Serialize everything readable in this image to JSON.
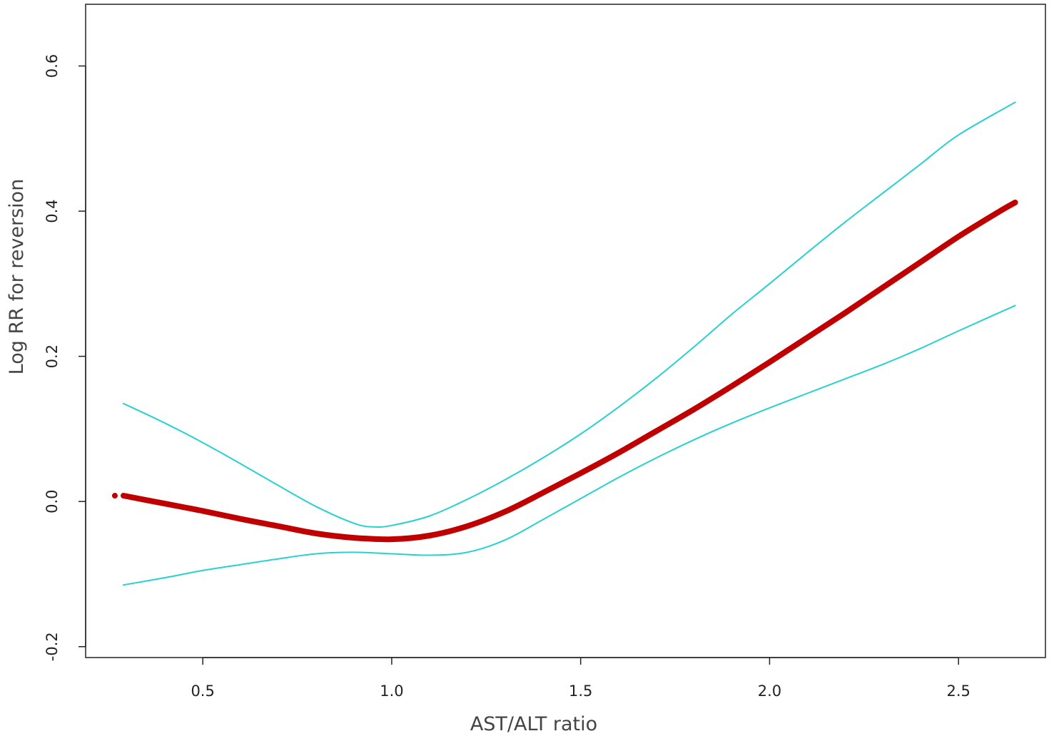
{
  "chart_data": {
    "type": "line",
    "xlabel": "AST/ALT ratio",
    "ylabel": "Log RR for reversion",
    "xlim": [
      0.19,
      2.73
    ],
    "ylim": [
      -0.215,
      0.685
    ],
    "xticks": [
      {
        "value": 0.5,
        "label": "0.5"
      },
      {
        "value": 1.0,
        "label": "1.0"
      },
      {
        "value": 1.5,
        "label": "1.5"
      },
      {
        "value": 2.0,
        "label": "2.0"
      },
      {
        "value": 2.5,
        "label": "2.5"
      }
    ],
    "yticks": [
      {
        "value": -0.2,
        "label": "-0.2"
      },
      {
        "value": 0.0,
        "label": "0.0"
      },
      {
        "value": 0.2,
        "label": "0.2"
      },
      {
        "value": 0.4,
        "label": "0.4"
      },
      {
        "value": 0.6,
        "label": "0.6"
      }
    ],
    "grid": false,
    "series": [
      {
        "color": "#c00000",
        "role": "estimate",
        "x": [
          0.29,
          0.4,
          0.5,
          0.6,
          0.7,
          0.8,
          0.9,
          1.0,
          1.1,
          1.2,
          1.3,
          1.4,
          1.5,
          1.6,
          1.7,
          1.8,
          1.9,
          2.0,
          2.1,
          2.2,
          2.3,
          2.4,
          2.5,
          2.6,
          2.65
        ],
        "y": [
          0.008,
          -0.003,
          -0.013,
          -0.024,
          -0.034,
          -0.044,
          -0.05,
          -0.052,
          -0.047,
          -0.034,
          -0.014,
          0.012,
          0.039,
          0.067,
          0.097,
          0.127,
          0.159,
          0.192,
          0.226,
          0.26,
          0.295,
          0.33,
          0.365,
          0.397,
          0.412
        ]
      },
      {
        "color": "#29d0d0",
        "role": "upper bound",
        "x": [
          0.29,
          0.4,
          0.5,
          0.6,
          0.7,
          0.8,
          0.9,
          0.95,
          1.0,
          1.1,
          1.2,
          1.3,
          1.4,
          1.5,
          1.6,
          1.7,
          1.8,
          1.9,
          2.0,
          2.1,
          2.2,
          2.3,
          2.4,
          2.5,
          2.65
        ],
        "y": [
          0.135,
          0.108,
          0.081,
          0.052,
          0.022,
          -0.007,
          -0.03,
          -0.035,
          -0.033,
          -0.02,
          0.003,
          0.03,
          0.06,
          0.093,
          0.13,
          0.17,
          0.213,
          0.258,
          0.3,
          0.343,
          0.385,
          0.425,
          0.465,
          0.505,
          0.55
        ]
      },
      {
        "color": "#29d0d0",
        "role": "lower bound",
        "x": [
          0.29,
          0.4,
          0.5,
          0.6,
          0.7,
          0.8,
          0.9,
          1.0,
          1.1,
          1.2,
          1.3,
          1.4,
          1.5,
          1.6,
          1.7,
          1.8,
          1.9,
          2.0,
          2.1,
          2.2,
          2.3,
          2.4,
          2.5,
          2.65
        ],
        "y": [
          -0.115,
          -0.105,
          -0.095,
          -0.087,
          -0.079,
          -0.072,
          -0.07,
          -0.072,
          -0.074,
          -0.07,
          -0.053,
          -0.025,
          0.004,
          0.033,
          0.06,
          0.085,
          0.108,
          0.129,
          0.149,
          0.169,
          0.189,
          0.211,
          0.235,
          0.27
        ]
      }
    ]
  }
}
